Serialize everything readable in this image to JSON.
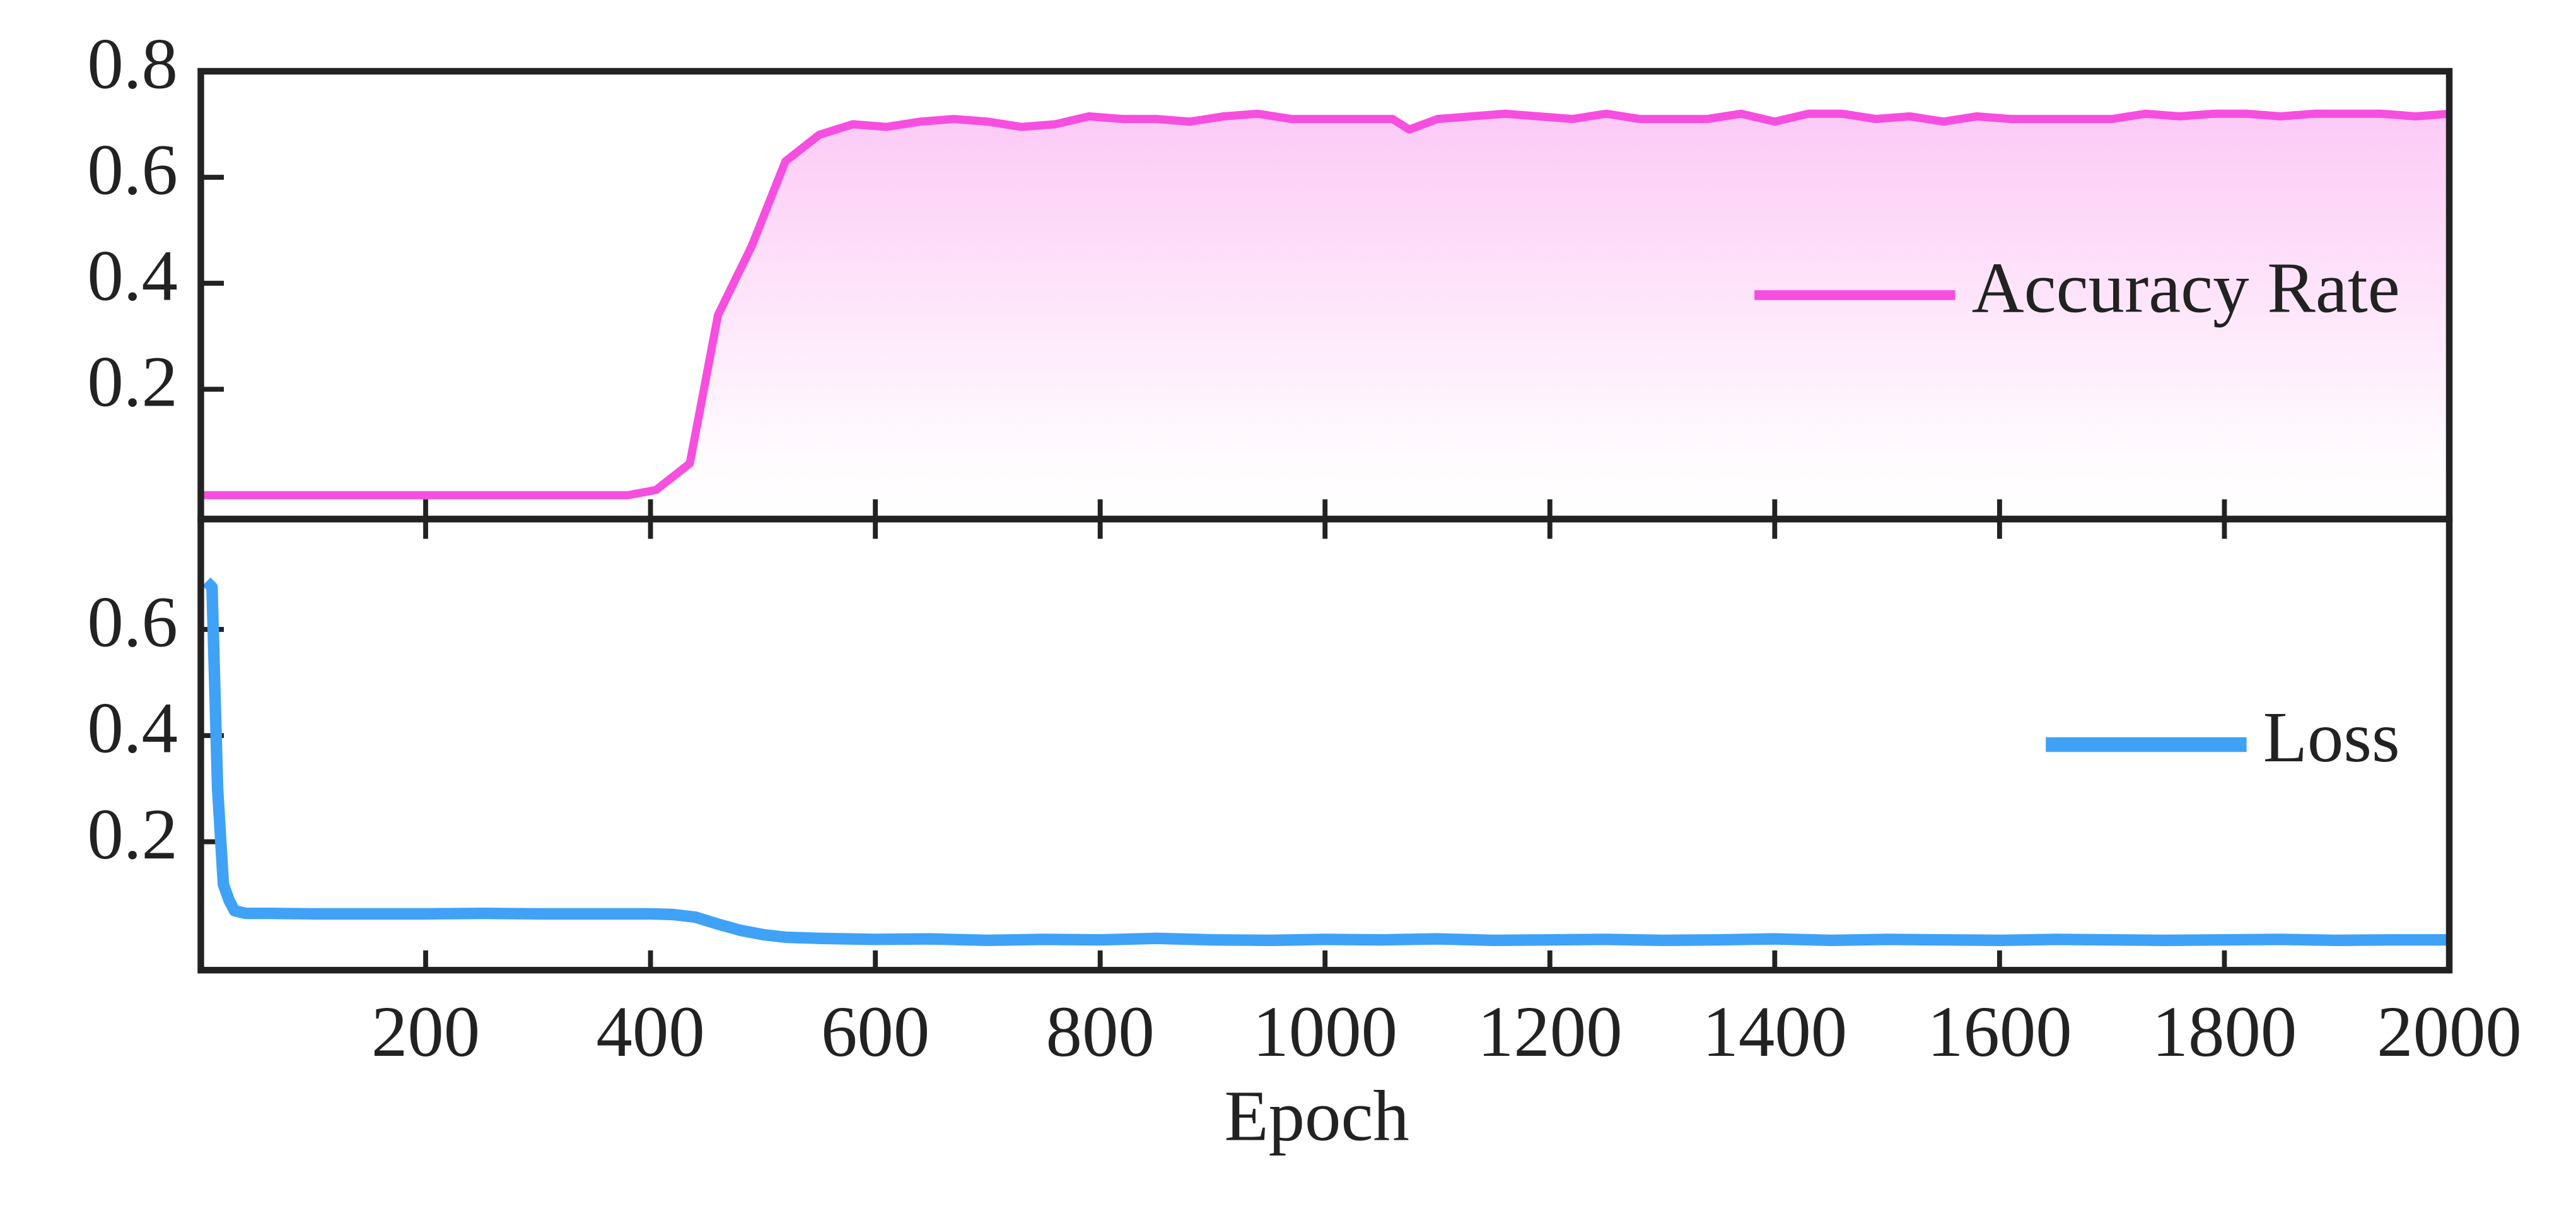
{
  "chart_data": [
    {
      "type": "line",
      "xlim": [
        0,
        2000
      ],
      "ylim": [
        -0.045,
        0.8
      ],
      "yticks": [
        0.2,
        0.4,
        0.6,
        0.8
      ],
      "legend": "right",
      "fill": true,
      "series": [
        {
          "name": "Accuracy Rate",
          "color": "#f64fe0",
          "x": [
            0,
            380,
            405,
            435,
            460,
            490,
            520,
            550,
            580,
            610,
            640,
            670,
            700,
            730,
            760,
            790,
            820,
            850,
            880,
            910,
            940,
            970,
            1000,
            1030,
            1060,
            1075,
            1100,
            1130,
            1160,
            1190,
            1220,
            1250,
            1280,
            1310,
            1340,
            1370,
            1400,
            1430,
            1460,
            1490,
            1520,
            1550,
            1580,
            1610,
            1640,
            1670,
            1700,
            1730,
            1760,
            1790,
            1820,
            1850,
            1880,
            1910,
            1940,
            1970,
            2000
          ],
          "values": [
            0,
            0,
            0.01,
            0.06,
            0.34,
            0.47,
            0.63,
            0.68,
            0.7,
            0.695,
            0.705,
            0.71,
            0.705,
            0.695,
            0.7,
            0.715,
            0.71,
            0.71,
            0.705,
            0.715,
            0.72,
            0.71,
            0.71,
            0.71,
            0.71,
            0.69,
            0.71,
            0.715,
            0.72,
            0.715,
            0.71,
            0.72,
            0.71,
            0.71,
            0.71,
            0.72,
            0.705,
            0.72,
            0.72,
            0.71,
            0.715,
            0.705,
            0.715,
            0.71,
            0.71,
            0.71,
            0.71,
            0.72,
            0.715,
            0.72,
            0.72,
            0.715,
            0.72,
            0.72,
            0.72,
            0.715,
            0.72
          ]
        }
      ]
    },
    {
      "type": "line",
      "xlabel": "Epoch",
      "xlim": [
        0,
        2000
      ],
      "ylim": [
        -0.042,
        0.808
      ],
      "xticks": [
        200,
        400,
        600,
        800,
        1000,
        1200,
        1400,
        1600,
        1800,
        2000
      ],
      "yticks": [
        0.2,
        0.4,
        0.6
      ],
      "legend": "right",
      "series": [
        {
          "name": "Loss",
          "color": "#3fa2f7",
          "x": [
            5,
            10,
            15,
            20,
            25,
            30,
            40,
            60,
            100,
            150,
            200,
            250,
            300,
            350,
            400,
            420,
            440,
            460,
            480,
            500,
            520,
            550,
            600,
            650,
            700,
            750,
            800,
            850,
            900,
            950,
            1000,
            1050,
            1100,
            1150,
            1200,
            1250,
            1300,
            1350,
            1400,
            1450,
            1500,
            1550,
            1600,
            1650,
            1700,
            1750,
            1800,
            1850,
            1900,
            1950,
            2000
          ],
          "values": [
            0.69,
            0.68,
            0.3,
            0.12,
            0.09,
            0.07,
            0.065,
            0.065,
            0.064,
            0.064,
            0.064,
            0.065,
            0.064,
            0.064,
            0.064,
            0.063,
            0.058,
            0.045,
            0.033,
            0.025,
            0.02,
            0.018,
            0.016,
            0.017,
            0.014,
            0.016,
            0.015,
            0.018,
            0.015,
            0.014,
            0.016,
            0.015,
            0.017,
            0.014,
            0.015,
            0.016,
            0.014,
            0.015,
            0.017,
            0.014,
            0.016,
            0.015,
            0.014,
            0.016,
            0.015,
            0.014,
            0.015,
            0.016,
            0.014,
            0.015,
            0.015
          ]
        }
      ]
    }
  ]
}
